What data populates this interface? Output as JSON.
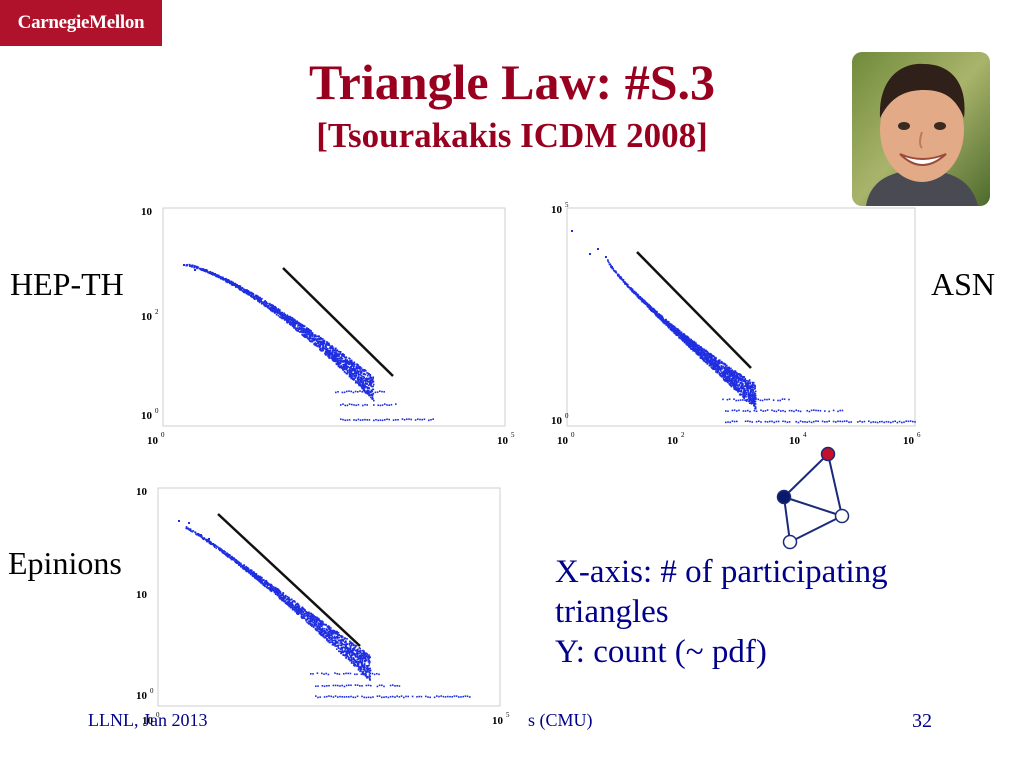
{
  "header": {
    "logo": "CarnegieMellon",
    "title": "Triangle Law: #S.3",
    "subtitle": "[Tsourakakis ICDM 2008]"
  },
  "labels": {
    "hepth": "HEP-TH",
    "asn": "ASN",
    "epinions": "Epinions"
  },
  "caption": {
    "line1": "X-axis: # of  participating",
    "line2": "triangles",
    "line3": "Y: count (~ pdf)"
  },
  "footer": {
    "left": "LLNL, Jan 2013",
    "center": "s (CMU)",
    "page": "32"
  },
  "colors": {
    "accent": "#99001f",
    "logo_bg": "#b0112b",
    "points": "#1f2ee0",
    "caption": "#00008b"
  },
  "chart_data": [
    {
      "type": "scatter",
      "scale": "log-log",
      "y_ticks": [
        "10",
        "10",
        "10"
      ],
      "y_tick_exponents": [
        "",
        "2",
        "0"
      ],
      "x_ticks": [
        "10",
        "10"
      ],
      "x_tick_exponents": [
        "0",
        "5"
      ],
      "title": "",
      "xlabel": "",
      "ylabel": ""
    },
    {
      "type": "scatter",
      "scale": "log-log",
      "y_ticks": [
        "10",
        "10"
      ],
      "y_tick_exponents": [
        "5",
        "0"
      ],
      "x_ticks": [
        "10",
        "10",
        "10",
        "10"
      ],
      "x_tick_exponents": [
        "0",
        "2",
        "4",
        "6"
      ],
      "title": "",
      "xlabel": "",
      "ylabel": ""
    },
    {
      "type": "scatter",
      "scale": "log-log",
      "y_ticks": [
        "10",
        "10",
        "10"
      ],
      "y_tick_exponents": [
        "",
        "",
        "0"
      ],
      "x_ticks": [
        "10",
        "10"
      ],
      "x_tick_exponents": [
        "0",
        "5"
      ],
      "title": "",
      "xlabel": "",
      "ylabel": ""
    }
  ]
}
